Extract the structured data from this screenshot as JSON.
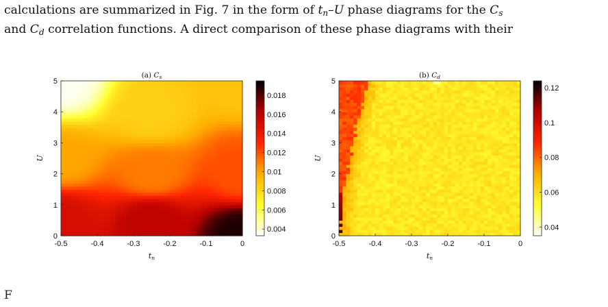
{
  "text": {
    "line1": {
      "a": "calculations are summarized in Fig. 7 in the form of ",
      "v1": "t",
      "v1_sub": "n",
      "dash": "–",
      "v2": "U",
      "b": " phase diagrams for the ",
      "v3": "C",
      "v3_sub": "s"
    },
    "line2": {
      "v1": "C",
      "a": "and ",
      "v1_sub": "d",
      "b": " correlation functions. A direct comparison of these phase diagrams with their"
    },
    "caption_peek": "F"
  },
  "colors": {
    "colormap": [
      "#ffffff",
      "#ffff30",
      "#ffb000",
      "#ff2600",
      "#b80000",
      "#000000"
    ],
    "text": "#111111",
    "background": "#ffffff"
  },
  "chart_data": [
    {
      "type": "heatmap",
      "title": "(a) C",
      "title_sub": "s",
      "xlabel": "t",
      "xlabel_sub": "n",
      "ylabel": "U",
      "xlim": [
        -0.5,
        0
      ],
      "ylim": [
        0,
        5
      ],
      "x_ticks": [
        "-0.5",
        "-0.4",
        "-0.3",
        "-0.2",
        "-0.1",
        "0"
      ],
      "y_ticks": [
        "0",
        "1",
        "2",
        "3",
        "4",
        "5"
      ],
      "colorbar_range": [
        0.0033,
        0.0195
      ],
      "colorbar_ticks": [
        "0.004",
        "0.006",
        "0.008",
        "0.01",
        "0.012",
        "0.014",
        "0.016",
        "0.018"
      ],
      "grid": "off",
      "description_model": "smooth",
      "samples": [
        {
          "t_n": -0.5,
          "U": 5.0,
          "C": 0.0035
        },
        {
          "t_n": -0.5,
          "U": 2.5,
          "C": 0.01
        },
        {
          "t_n": -0.5,
          "U": 0.5,
          "C": 0.015
        },
        {
          "t_n": -0.25,
          "U": 4.0,
          "C": 0.0085
        },
        {
          "t_n": -0.25,
          "U": 2.0,
          "C": 0.011
        },
        {
          "t_n": -0.25,
          "U": 0.5,
          "C": 0.016
        },
        {
          "t_n": 0.0,
          "U": 5.0,
          "C": 0.009
        },
        {
          "t_n": 0.0,
          "U": 2.0,
          "C": 0.012
        },
        {
          "t_n": 0.0,
          "U": 0.05,
          "C": 0.019
        }
      ]
    },
    {
      "type": "heatmap",
      "title": "(b) C",
      "title_sub": "d",
      "xlabel": "t",
      "xlabel_sub": "n",
      "ylabel": "U",
      "xlim": [
        -0.5,
        0
      ],
      "ylim": [
        0,
        5
      ],
      "x_ticks": [
        "-0.5",
        "-0.4",
        "-0.3",
        "-0.2",
        "-0.1",
        "0"
      ],
      "y_ticks": [
        "0",
        "1",
        "2",
        "3",
        "4",
        "5"
      ],
      "colorbar_range": [
        0.035,
        0.124
      ],
      "colorbar_ticks": [
        "0.04",
        "0.06",
        "0.08",
        "0.1",
        "0.12"
      ],
      "grid": "off",
      "description_model": "boundary",
      "samples": [
        {
          "t_n": -0.48,
          "U": 4.5,
          "C": 0.085
        },
        {
          "t_n": -0.47,
          "U": 2.0,
          "C": 0.085
        },
        {
          "t_n": -0.5,
          "U": 0.2,
          "C": 0.12
        },
        {
          "t_n": -0.3,
          "U": 3.0,
          "C": 0.058
        },
        {
          "t_n": -0.1,
          "U": 1.0,
          "C": 0.056
        },
        {
          "t_n": -0.23,
          "U": 5.0,
          "C": 0.045
        }
      ],
      "boundary": [
        {
          "U": 0.5,
          "t_n": -0.492
        },
        {
          "U": 1.5,
          "t_n": -0.487
        },
        {
          "U": 2.5,
          "t_n": -0.468
        },
        {
          "U": 3.5,
          "t_n": -0.452
        },
        {
          "U": 4.5,
          "t_n": -0.43
        },
        {
          "U": 5.0,
          "t_n": -0.42
        }
      ]
    }
  ]
}
